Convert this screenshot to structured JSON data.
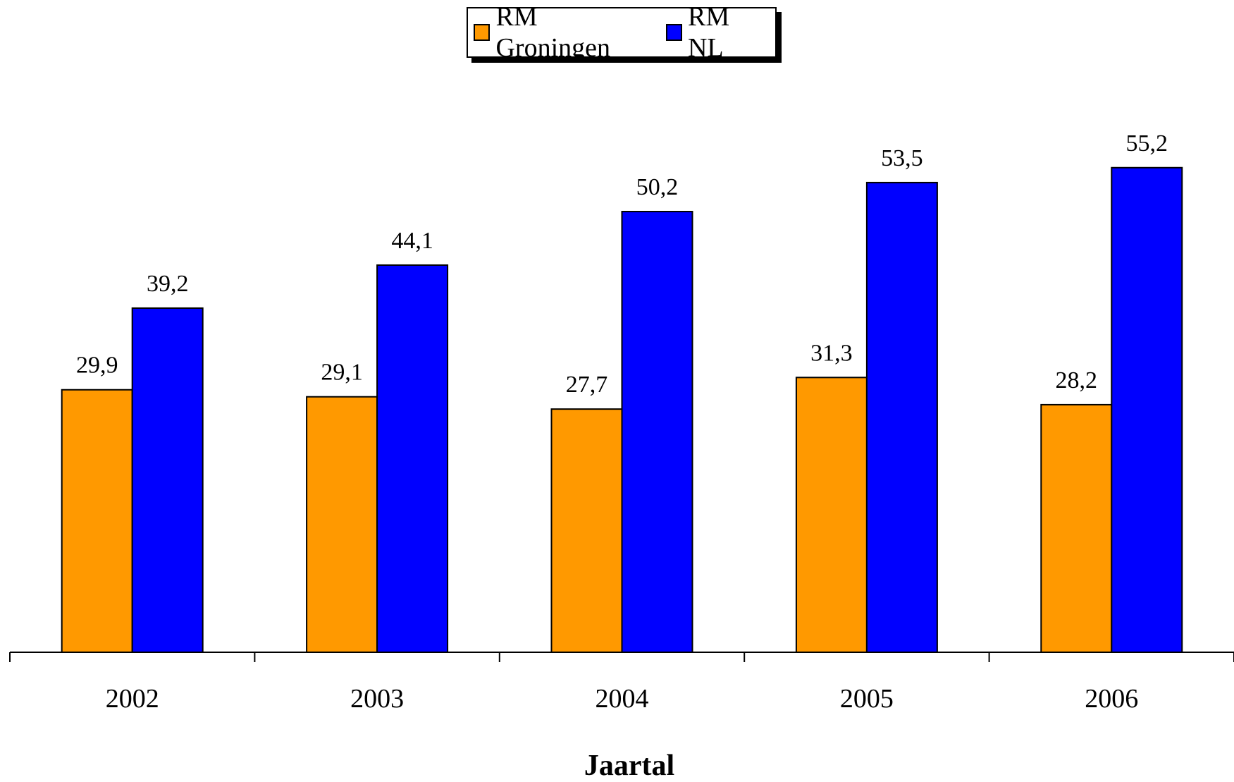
{
  "chart_data": {
    "type": "bar",
    "title": "",
    "xlabel": "Jaartal",
    "ylabel": "",
    "ylim": [
      0,
      60
    ],
    "categories": [
      "2002",
      "2003",
      "2004",
      "2005",
      "2006"
    ],
    "series": [
      {
        "name": "RM Groningen",
        "color": "#FF9900",
        "values": [
          29.9,
          29.1,
          27.7,
          31.3,
          28.2
        ],
        "labels": [
          "29,9",
          "29,1",
          "27,7",
          "31,3",
          "28,2"
        ]
      },
      {
        "name": "RM NL",
        "color": "#0000FF",
        "values": [
          39.2,
          44.1,
          50.2,
          53.5,
          55.2
        ],
        "labels": [
          "39,2",
          "44,1",
          "50,2",
          "53,5",
          "55,2"
        ]
      }
    ],
    "legend_position": "top-center",
    "grid": false
  }
}
